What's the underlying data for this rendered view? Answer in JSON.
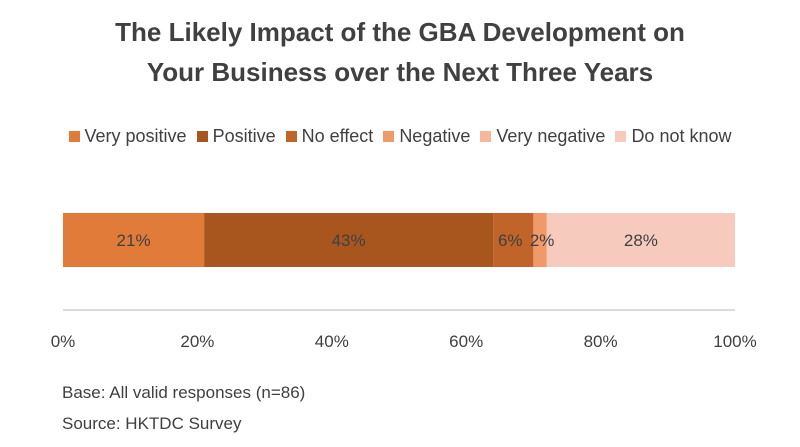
{
  "chart_data": {
    "type": "bar",
    "orientation": "horizontal",
    "stacked": true,
    "title": [
      "The Likely Impact of the GBA Development on",
      "Your Business over the Next Three Years"
    ],
    "categories": [
      ""
    ],
    "series": [
      {
        "name": "Very positive",
        "values": [
          21
        ],
        "label": "21%",
        "color": "#E07B39"
      },
      {
        "name": "Positive",
        "values": [
          43
        ],
        "label": "43%",
        "color": "#A9561E"
      },
      {
        "name": "No effect",
        "values": [
          6
        ],
        "label": "6%",
        "color": "#C0642A"
      },
      {
        "name": "Negative",
        "values": [
          2
        ],
        "label": "2%",
        "color": "#F09A6A"
      },
      {
        "name": "Very negative",
        "values": [
          0
        ],
        "label": "",
        "color": "#F6B79C"
      },
      {
        "name": "Do not know",
        "values": [
          28
        ],
        "label": "28%",
        "color": "#F6CBBE"
      }
    ],
    "xlim": [
      0,
      100
    ],
    "xticks": [
      "0%",
      "20%",
      "40%",
      "60%",
      "80%",
      "100%"
    ],
    "legend_position": "top",
    "grid": false
  },
  "footnotes": {
    "base": "Base: All valid responses (n=86)",
    "source": "Source:  HKTDC Survey"
  }
}
